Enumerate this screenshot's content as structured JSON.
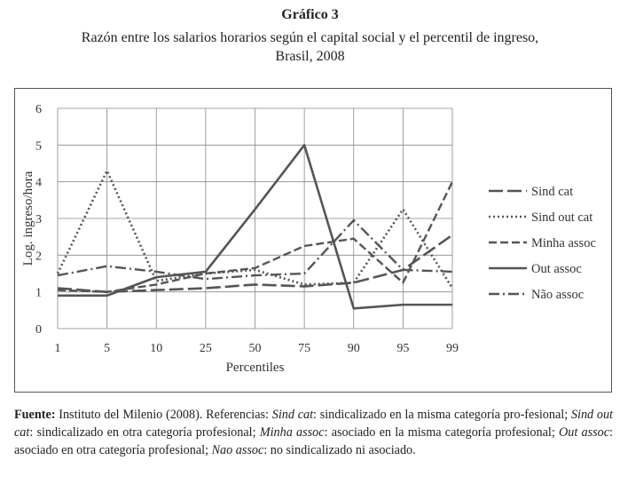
{
  "figure": {
    "number": "Gráfico 3",
    "subtitle_line1": "Razón entre los salarios horarios según el capital social y el percentil de ingreso,",
    "subtitle_line2": "Brasil, 2008"
  },
  "footer": {
    "source_label": "Fuente:",
    "source_text": " Instituto del Milenio (2008). Referencias: ",
    "ref1_term": "Sind cat",
    "ref1_def": ": sindicalizado en la misma categoría pro-fesional; ",
    "ref2_term": "Sind out cat",
    "ref2_def": ": sindicalizado en otra categoría profesional; ",
    "ref3_term": "Minha assoc",
    "ref3_def": ": asociado en la misma categoría profesional; ",
    "ref4_term": "Out assoc",
    "ref4_def": ": asociado en otra categoría profesional; ",
    "ref5_term": "Nao assoc",
    "ref5_def": ": no sindicalizado ni asociado."
  },
  "chart_data": {
    "type": "line",
    "xlabel": "Percentiles",
    "ylabel": "Log. ingreso/hora",
    "categories": [
      "1",
      "5",
      "10",
      "25",
      "50",
      "75",
      "90",
      "95",
      "99"
    ],
    "ylim": [
      0,
      6
    ],
    "yticks": [
      0,
      1,
      2,
      3,
      4,
      5,
      6
    ],
    "grid": true,
    "legend_position": "right",
    "series": [
      {
        "name": "Sind cat",
        "style": "longdash",
        "values": [
          1.1,
          1.0,
          1.05,
          1.1,
          1.2,
          1.15,
          1.25,
          1.6,
          2.55
        ]
      },
      {
        "name": "Sind out cat",
        "style": "dotted",
        "values": [
          1.5,
          4.3,
          1.3,
          1.5,
          1.6,
          1.2,
          1.25,
          3.25,
          1.1
        ]
      },
      {
        "name": "Minha assoc",
        "style": "dashed",
        "values": [
          1.05,
          1.0,
          1.2,
          1.5,
          1.65,
          2.25,
          2.45,
          1.25,
          4.0
        ]
      },
      {
        "name": "Out assoc",
        "style": "solid",
        "values": [
          0.9,
          0.9,
          1.4,
          1.55,
          3.25,
          5.0,
          0.55,
          0.65,
          0.65
        ]
      },
      {
        "name": "Não assoc",
        "style": "dashdot",
        "values": [
          1.45,
          1.7,
          1.55,
          1.35,
          1.45,
          1.5,
          2.95,
          1.6,
          1.55
        ]
      }
    ],
    "colors": {
      "lines": "#555555",
      "grid": "#888888"
    }
  }
}
